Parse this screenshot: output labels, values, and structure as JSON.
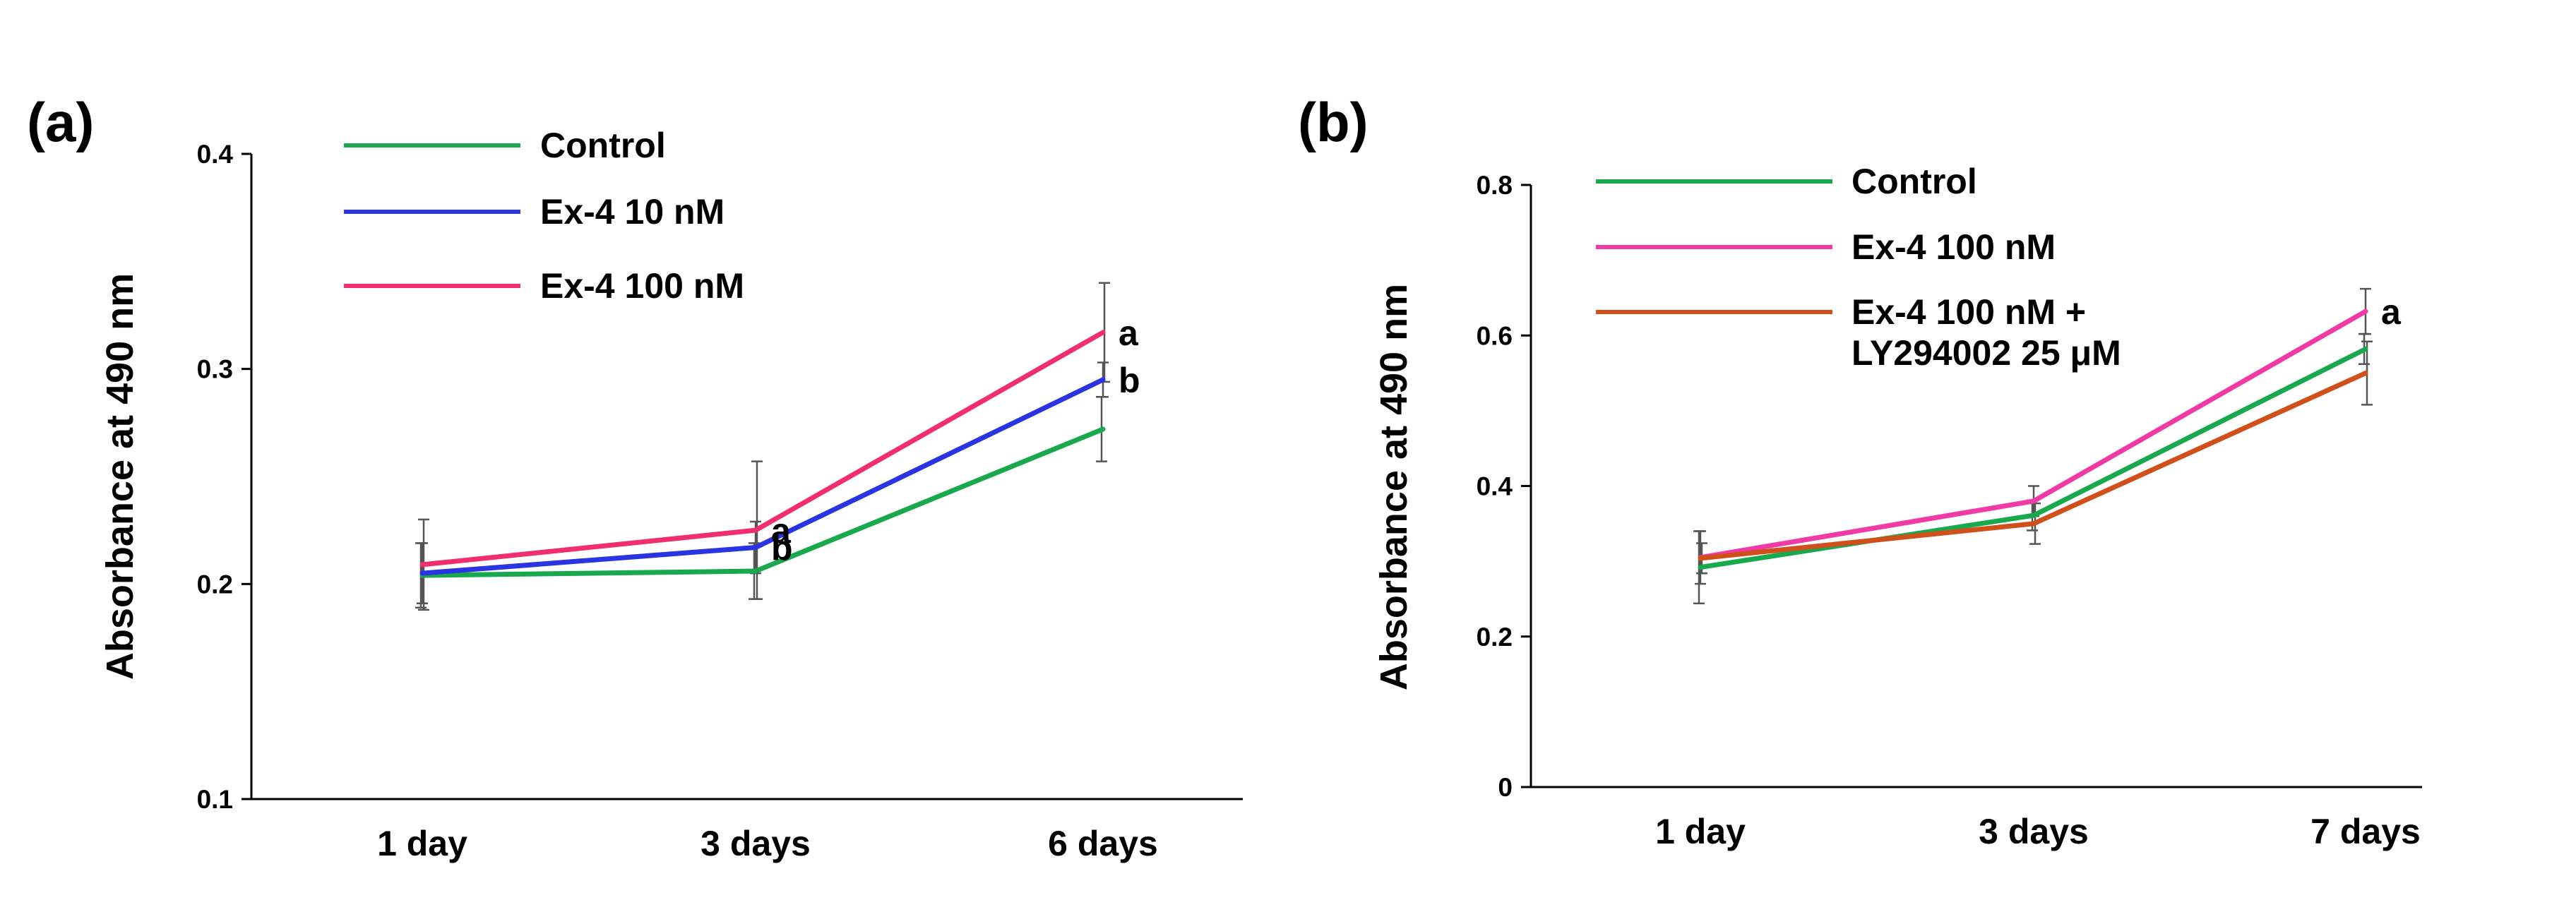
{
  "chart_data": [
    {
      "panel": "(a)",
      "type": "line",
      "categories": [
        "1 day",
        "3 days",
        "6 days"
      ],
      "ylabel": "Absorbance at 490 nm",
      "xlabel": "",
      "ylim": [
        0.1,
        0.4
      ],
      "yticks": [
        "0.1",
        "0.2",
        "0.3",
        "0.4"
      ],
      "grid": false,
      "legend_position": "top-left",
      "series": [
        {
          "name": "Control",
          "color": "#1aa84f",
          "values": [
            0.204,
            0.206,
            0.272
          ],
          "errors": [
            0.015,
            0.013,
            0.015
          ],
          "labels": [
            "",
            "",
            ""
          ]
        },
        {
          "name": "Ex-4 10 nM",
          "color": "#2a34e0",
          "values": [
            0.205,
            0.217,
            0.295
          ],
          "errors": [
            0.014,
            0.012,
            0.008
          ],
          "labels": [
            "",
            "b",
            "b"
          ]
        },
        {
          "name": "Ex-4 100 nM",
          "color": "#f0306e",
          "values": [
            0.209,
            0.225,
            0.317
          ],
          "errors": [
            0.021,
            0.032,
            0.023
          ],
          "labels": [
            "",
            "a",
            "a"
          ]
        }
      ]
    },
    {
      "panel": "(b)",
      "type": "line",
      "categories": [
        "1 day",
        "3 days",
        "7 days"
      ],
      "ylabel": "Absorbance at 490 nm",
      "xlabel": "",
      "ylim": [
        0,
        0.8
      ],
      "yticks": [
        "0",
        "0.2",
        "0.4",
        "0.6",
        "0.8"
      ],
      "grid": false,
      "legend_position": "top-left",
      "series": [
        {
          "name": "Control",
          "color": "#1aa84f",
          "values": [
            0.292,
            0.361,
            0.582
          ],
          "errors": [
            0.048,
            0.02,
            0.02
          ],
          "labels": [
            "",
            "",
            ""
          ]
        },
        {
          "name": "Ex-4 100 nM",
          "color": "#f03aa6",
          "values": [
            0.305,
            0.38,
            0.632
          ],
          "errors": [
            0.035,
            0.02,
            0.03
          ],
          "labels": [
            "",
            "",
            "a"
          ]
        },
        {
          "name": "Ex-4 100 nM +\nLY294002 25 μM",
          "color": "#d0501c",
          "values": [
            0.304,
            0.35,
            0.55
          ],
          "errors": [
            0.02,
            0.027,
            0.042
          ],
          "labels": [
            "",
            "",
            ""
          ]
        }
      ]
    }
  ]
}
